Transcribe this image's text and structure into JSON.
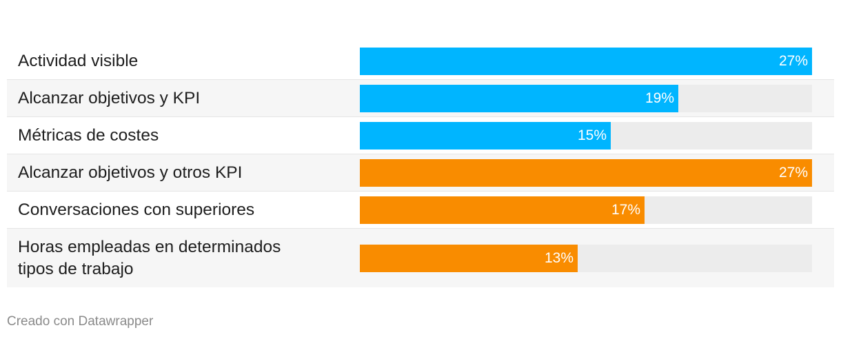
{
  "chart_data": {
    "type": "bar",
    "orientation": "horizontal",
    "categories": [
      "Actividad visible",
      "Alcanzar objetivos y KPI",
      "Métricas de costes",
      "Alcanzar objetivos y otros KPI",
      "Conversaciones con superiores",
      "Horas empleadas en determinados tipos de trabajo"
    ],
    "values": [
      27,
      19,
      15,
      27,
      17,
      13
    ],
    "value_labels": [
      "27%",
      "19%",
      "15%",
      "27%",
      "17%",
      "13%"
    ],
    "group_colors": [
      "#00b5ff",
      "#00b5ff",
      "#00b5ff",
      "#f98c00",
      "#f98c00",
      "#f98c00"
    ],
    "track_color": "#ececec",
    "xlim": [
      0,
      27
    ],
    "unit": "%"
  },
  "credit": "Creado con Datawrapper"
}
